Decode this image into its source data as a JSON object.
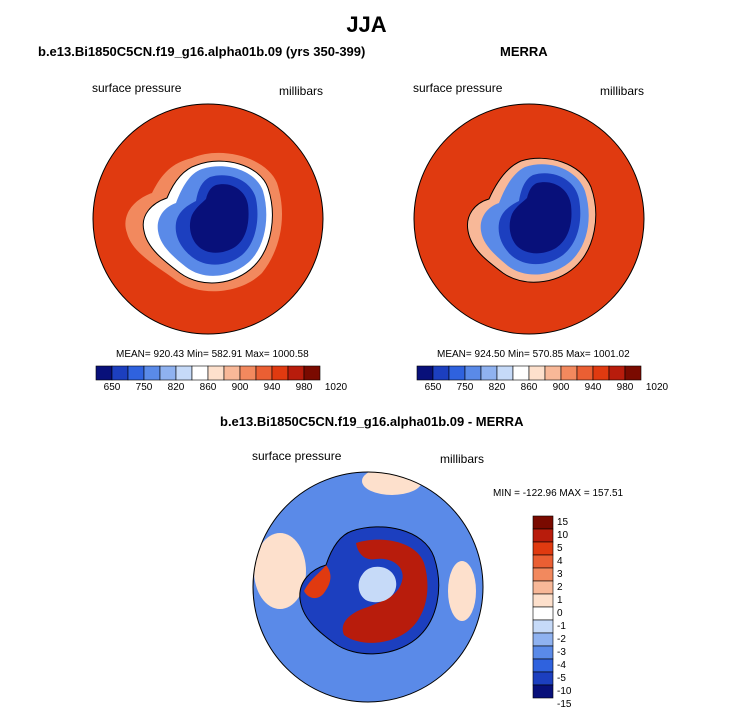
{
  "page": {
    "title": "JJA",
    "diff_title": "b.e13.Bi1850C5CN.f19_g16.alpha01b.09 - MERRA"
  },
  "panels": [
    {
      "title": "b.e13.Bi1850C5CN.f19_g16.alpha01b.09 (yrs 350-399)",
      "variable": "surface pressure",
      "units": "millibars",
      "stats": "MEAN= 920.43   Min= 582.91   Max= 1000.58"
    },
    {
      "title": "MERRA",
      "variable": "surface pressure",
      "units": "millibars",
      "stats": "MEAN= 924.50   Min= 570.85   Max= 1001.02"
    }
  ],
  "diff_panel": {
    "variable": "surface pressure",
    "units": "millibars",
    "stats": "MIN = -122.96 MAX = 157.51"
  },
  "colorbar_abs": {
    "colors": [
      "#08107a",
      "#1c3fbf",
      "#2f62de",
      "#5a8ae8",
      "#8fb2f0",
      "#c6daf8",
      "#ffffff",
      "#fde0cc",
      "#f8b898",
      "#f2895e",
      "#ea5f33",
      "#e03a10",
      "#b81c0c",
      "#7a0a00"
    ],
    "labels": [
      "650",
      "750",
      "820",
      "860",
      "900",
      "940",
      "980",
      "1020"
    ]
  },
  "colorbar_diff": {
    "colors": [
      "#7a0a00",
      "#b81c0c",
      "#e03a10",
      "#ea5f33",
      "#f2895e",
      "#f8b898",
      "#fde0cc",
      "#ffffff",
      "#c6daf8",
      "#8fb2f0",
      "#5a8ae8",
      "#2f62de",
      "#1c3fbf",
      "#08107a"
    ],
    "labels": [
      "15",
      "10",
      "5",
      "4",
      "3",
      "2",
      "1",
      "0",
      "-1",
      "-2",
      "-3",
      "-4",
      "-5",
      "-10",
      "-15"
    ]
  },
  "colors": {
    "ocean_high": "#e03a10",
    "shelf": "#ea5f33",
    "plateau": "#08107a",
    "diff_background": "#5a8ae8"
  }
}
